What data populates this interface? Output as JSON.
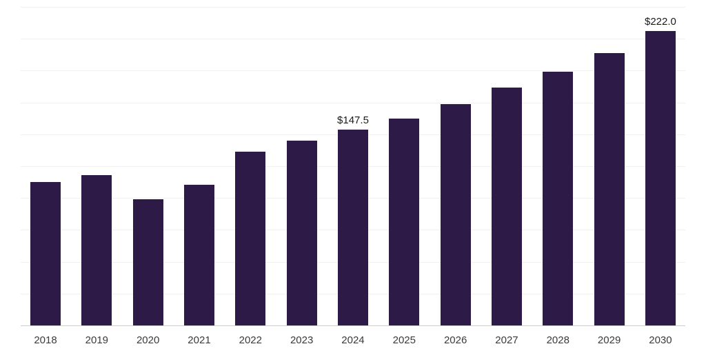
{
  "chart_data": {
    "type": "bar",
    "title": "",
    "xlabel": "",
    "ylabel": "",
    "categories": [
      "2018",
      "2019",
      "2020",
      "2021",
      "2022",
      "2023",
      "2024",
      "2025",
      "2026",
      "2027",
      "2028",
      "2029",
      "2030"
    ],
    "values": [
      108,
      113,
      95,
      106,
      131,
      139,
      147.5,
      156,
      167,
      179,
      191,
      205,
      222
    ],
    "data_labels": [
      "",
      "",
      "",
      "",
      "",
      "",
      "$147.5",
      "",
      "",
      "",
      "",
      "",
      "$222.0"
    ],
    "bar_color": "#2e1a47",
    "ylim": [
      0,
      240
    ],
    "gridline_count": 10,
    "grid": "horizontal",
    "legend": "none"
  }
}
